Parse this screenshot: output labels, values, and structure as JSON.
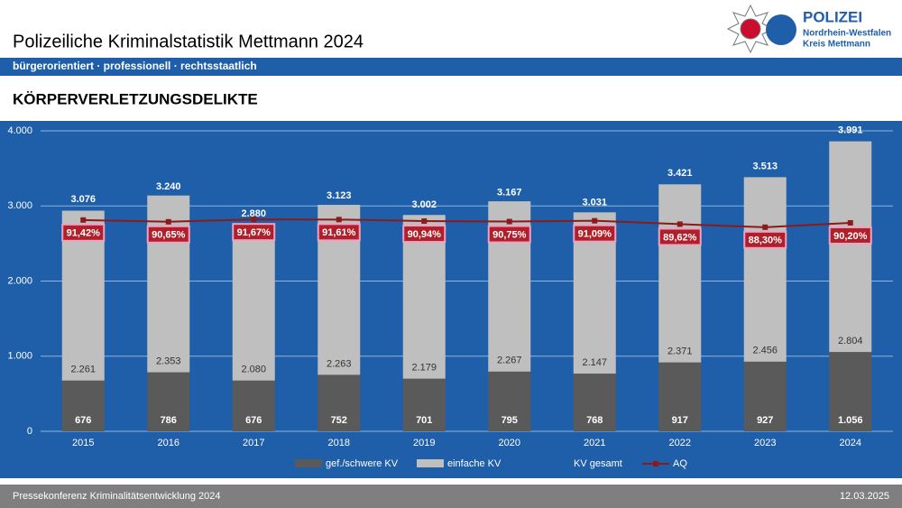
{
  "header": {
    "title": "Polizeiliche Kriminalstatistik Mettmann 2024",
    "tagline": "bürgerorientiert · professionell · rechtsstaatlich",
    "section": "KÖRPERVERLETZUNGSDELIKTE"
  },
  "logo": {
    "name": "POLIZEI",
    "state": "Nordrhein-Westfalen",
    "district": "Kreis Mettmann"
  },
  "footer": {
    "left": "Pressekonferenz Kriminalitätsentwicklung 2024",
    "right": "12.03.2025"
  },
  "chart_data": {
    "type": "stacked_bar",
    "categories": [
      "2015",
      "2016",
      "2017",
      "2018",
      "2019",
      "2020",
      "2021",
      "2022",
      "2023",
      "2024"
    ],
    "series": [
      {
        "name": "gef./schwere KV",
        "color": "#5a5a5a",
        "values": [
          676,
          786,
          676,
          752,
          701,
          795,
          768,
          917,
          927,
          1056
        ],
        "value_labels": [
          "676",
          "786",
          "676",
          "752",
          "701",
          "795",
          "768",
          "917",
          "927",
          "1.056"
        ]
      },
      {
        "name": "einfache KV",
        "color": "#bfbfbf",
        "values": [
          2261,
          2353,
          2080,
          2263,
          2179,
          2267,
          2147,
          2371,
          2456,
          2804
        ],
        "value_labels": [
          "2.261",
          "2.353",
          "2.080",
          "2.263",
          "2.179",
          "2.267",
          "2.147",
          "2.371",
          "2.456",
          "2.804"
        ]
      },
      {
        "name": "KV gesamt",
        "color": "#1f5ea8",
        "values": [
          3076,
          3240,
          2880,
          3123,
          3002,
          3167,
          3031,
          3421,
          3513,
          3991
        ],
        "value_labels": [
          "3.076",
          "3.240",
          "2.880",
          "3.123",
          "3.002",
          "3.167",
          "3.031",
          "3.421",
          "3.513",
          "3.991"
        ]
      },
      {
        "name": "AQ",
        "color": "#8b1a1a",
        "axis": "y2",
        "values": [
          91.42,
          90.65,
          91.67,
          91.61,
          90.94,
          90.75,
          91.09,
          89.62,
          88.3,
          90.2
        ],
        "value_labels": [
          "91,42%",
          "90,65%",
          "91,67%",
          "91,61%",
          "90,94%",
          "90,75%",
          "91,09%",
          "89,62%",
          "88,30%",
          "90,20%"
        ]
      }
    ],
    "ylim": [
      0,
      4000
    ],
    "yticks": [
      0,
      {
        "value": 1000,
        "label": "1.000"
      },
      {
        "value": 2000,
        "label": "2.000"
      },
      {
        "value": 3000,
        "label": "3.000"
      },
      {
        "value": 4000,
        "label": "4.000"
      }
    ],
    "y2lim": [
      0,
      130
    ],
    "grid": true,
    "legend": "bottom"
  }
}
